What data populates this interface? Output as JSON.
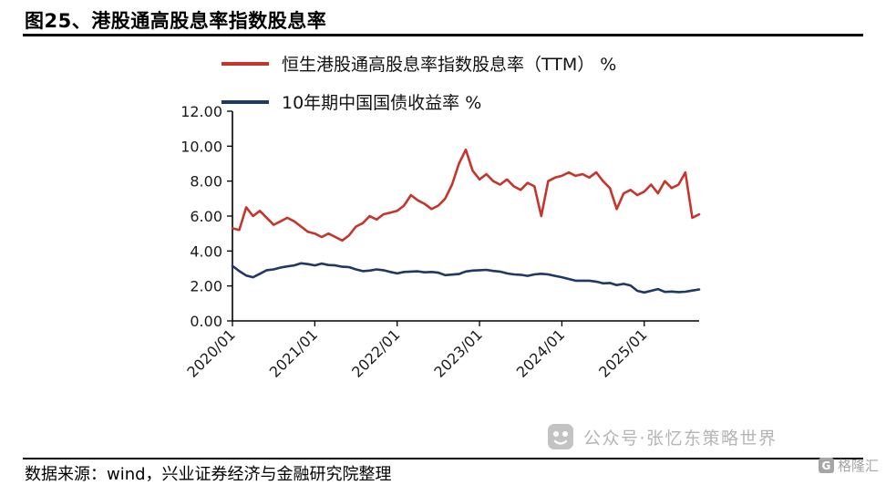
{
  "header": {
    "title": "图25、港股通高股息率指数股息率"
  },
  "footer": {
    "source": "数据来源：wind，兴业证券经济与金融研究院整理"
  },
  "watermark": {
    "text": "公众号·张忆东策略世界",
    "logo": "panda-logo"
  },
  "branding": {
    "logo_letter": "G",
    "logo_text": "格隆汇"
  },
  "chart_data": {
    "type": "line",
    "title": "港股通高股息率指数股息率",
    "x_unit": "month",
    "x_start": "2020/01",
    "x_end": "2025/09",
    "x_tick_labels": [
      "2020/01",
      "2021/01",
      "2022/01",
      "2023/01",
      "2024/01",
      "2025/01"
    ],
    "x_tick_month_indices": [
      0,
      12,
      24,
      36,
      48,
      60
    ],
    "y_ticks": [
      0,
      2,
      4,
      6,
      8,
      10,
      12
    ],
    "y_tick_labels": [
      "0.00",
      "2.00",
      "4.00",
      "6.00",
      "8.00",
      "10.00",
      "12.00"
    ],
    "ylim": [
      0,
      12
    ],
    "grid": false,
    "legend_position": "top-left",
    "axis_color": "#000000",
    "series": [
      {
        "name": "恒生港股通高股息率指数股息率（TTM） %",
        "color": "#c6352c",
        "values": [
          5.3,
          5.2,
          6.5,
          6.0,
          6.3,
          5.9,
          5.5,
          5.7,
          5.9,
          5.7,
          5.4,
          5.1,
          5.0,
          4.8,
          5.0,
          4.8,
          4.6,
          4.9,
          5.4,
          5.6,
          6.0,
          5.8,
          6.1,
          6.2,
          6.3,
          6.6,
          7.2,
          6.9,
          6.7,
          6.4,
          6.6,
          7.0,
          7.8,
          9.0,
          9.8,
          8.6,
          8.1,
          8.4,
          8.0,
          7.8,
          8.1,
          7.7,
          7.5,
          7.9,
          7.7,
          6.0,
          8.0,
          8.2,
          8.3,
          8.5,
          8.3,
          8.4,
          8.2,
          8.5,
          8.0,
          7.6,
          6.4,
          7.3,
          7.5,
          7.2,
          7.4,
          7.8,
          7.3,
          8.0,
          7.6,
          7.8,
          8.5,
          5.9,
          6.1
        ]
      },
      {
        "name": "10年期中国国债收益率 %",
        "color": "#1f3864",
        "values": [
          3.15,
          2.85,
          2.6,
          2.5,
          2.7,
          2.9,
          2.95,
          3.05,
          3.12,
          3.18,
          3.3,
          3.25,
          3.18,
          3.28,
          3.2,
          3.18,
          3.1,
          3.08,
          2.95,
          2.85,
          2.88,
          2.95,
          2.9,
          2.8,
          2.72,
          2.8,
          2.82,
          2.84,
          2.78,
          2.8,
          2.76,
          2.62,
          2.65,
          2.68,
          2.83,
          2.88,
          2.9,
          2.92,
          2.86,
          2.82,
          2.72,
          2.66,
          2.64,
          2.58,
          2.66,
          2.7,
          2.66,
          2.58,
          2.5,
          2.4,
          2.3,
          2.3,
          2.3,
          2.25,
          2.15,
          2.17,
          2.05,
          2.12,
          2.03,
          1.72,
          1.63,
          1.72,
          1.82,
          1.66,
          1.68,
          1.65,
          1.67,
          1.74,
          1.8
        ]
      }
    ]
  }
}
